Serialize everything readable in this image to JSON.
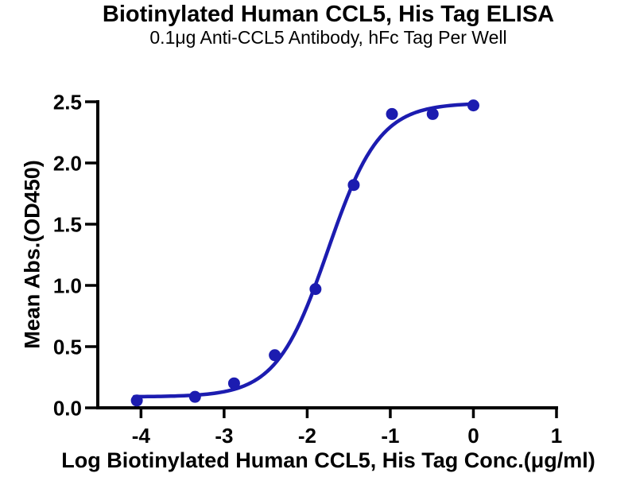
{
  "chart_data": {
    "type": "scatter",
    "title": "Biotinylated Human CCL5, His Tag ELISA",
    "subtitle": "0.1μg Anti-CCL5 Antibody, hFc Tag Per Well",
    "xlabel": "Log Biotinylated Human CCL5, His Tag Conc.(μg/ml)",
    "ylabel": "Mean Abs.(OD450)",
    "xlim": [
      -4.52,
      1.0
    ],
    "ylim": [
      0,
      2.5
    ],
    "x_ticks": [
      -4,
      -3,
      -2,
      -1,
      0,
      1
    ],
    "x_tick_labels": [
      "-4",
      "-3",
      "-2",
      "-1",
      "0",
      "1"
    ],
    "y_ticks": [
      0,
      0.5,
      1.0,
      1.5,
      2.0,
      2.5
    ],
    "y_tick_labels": [
      "0.0",
      "0.5",
      "1.0",
      "1.5",
      "2.0",
      "2.5"
    ],
    "grid": false,
    "legend": "none",
    "points": [
      {
        "x": -4.05,
        "y": 0.06
      },
      {
        "x": -3.35,
        "y": 0.09
      },
      {
        "x": -2.88,
        "y": 0.2
      },
      {
        "x": -2.39,
        "y": 0.43
      },
      {
        "x": -1.9,
        "y": 0.97
      },
      {
        "x": -1.44,
        "y": 1.82
      },
      {
        "x": -0.98,
        "y": 2.4
      },
      {
        "x": -0.49,
        "y": 2.4
      },
      {
        "x": 0.0,
        "y": 2.47
      }
    ],
    "fit_curve": {
      "model": "4PL-sigmoid",
      "bottom": 0.09,
      "top": 2.49,
      "logEC50": -1.75,
      "hillslope": 1.4,
      "x_start": -4.08,
      "x_end": 0.02
    },
    "colors": {
      "series": "#1C1CB0",
      "axis": "#000000",
      "text": "#000000",
      "background": "#FFFFFF"
    }
  }
}
